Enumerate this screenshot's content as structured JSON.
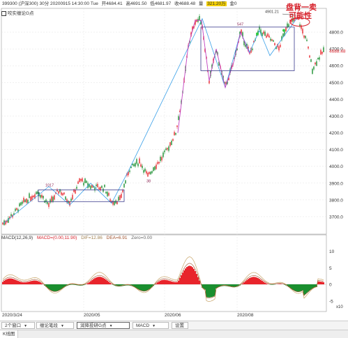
{
  "header": {
    "items": [
      "399300 (沪深300) 30分 20200915 14:30:00 Tue",
      "开4684.41",
      "高4691.50",
      "低4681.97",
      "收4688.48",
      "量",
      "321.20万",
      "金0"
    ],
    "highlight_color": "#f5d100"
  },
  "indicator_label": "咬实缠论G点",
  "price_axis": [
    "4800.0",
    "4700.0",
    "4600.0",
    "4500.0",
    "4400.0",
    "4300.0",
    "4200.0",
    "4100.0",
    "4000.0",
    "3900.0",
    "3800.0",
    "3700.0"
  ],
  "current_price": "4688.48",
  "chart_labels": {
    "box1_top": "1017",
    "low_38": "38",
    "box2_top": "547",
    "peak": "4901.21"
  },
  "annotation": {
    "line1": "盘背一卖",
    "line2": "可能性"
  },
  "macd": {
    "title": "MACD(12,26,9)",
    "macd": "MACD=(0.00,11.90)",
    "dif": "DIF=12.86",
    "dea": "DEA=6.91",
    "zero": "Zero=0.00",
    "axis": [
      "10",
      "5",
      "0",
      "-5"
    ],
    "multiplier": "x10"
  },
  "dates": [
    "2020/3/24",
    "2020/05",
    "2020/06",
    "2020/08"
  ],
  "tabs": {
    "window": "2个窗口",
    "chan": "缠论笔段",
    "gpoint": "润降投研G点",
    "macd": "MACD",
    "settings": "设置"
  },
  "bottom_tab": "K线图",
  "colors": {
    "up": "#e8242b",
    "down": "#1a8f2f",
    "line_blue": "#3aa0e8",
    "box": "#3b3b8c",
    "dif": "#c9a66b",
    "dea": "#a0522d"
  }
}
